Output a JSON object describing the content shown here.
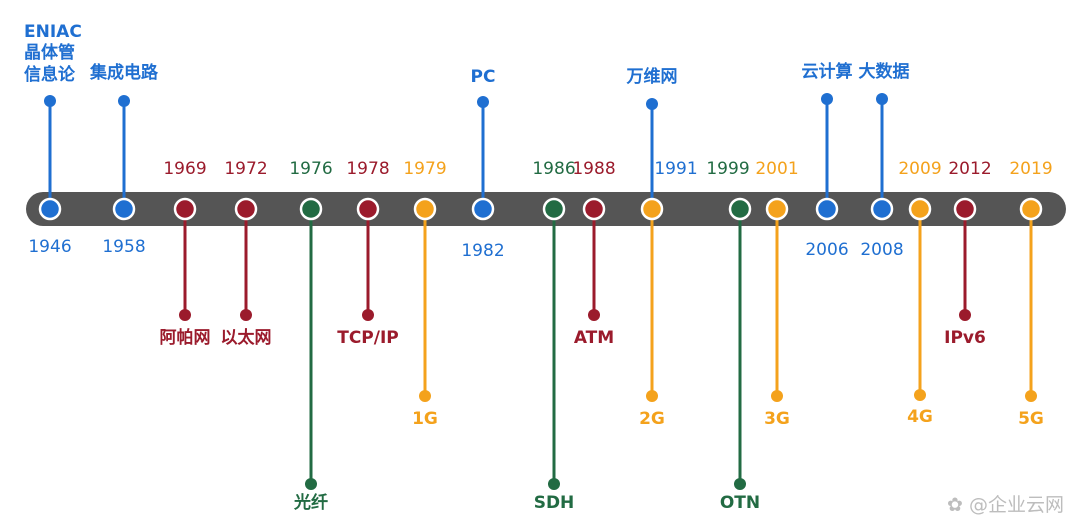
{
  "colors": {
    "blue": "#1f6fd1",
    "red": "#9b1b2c",
    "green": "#226b43",
    "orange": "#f4a21c",
    "bar": "#555555",
    "watermark": "#bdbdbd"
  },
  "events": [
    {
      "id": "1946",
      "year": "1946",
      "label": "ENIAC\n晶体管\n信息论",
      "color": "blue",
      "dir": "up"
    },
    {
      "id": "1958",
      "year": "1958",
      "label": "集成电路",
      "color": "blue",
      "dir": "up"
    },
    {
      "id": "1969",
      "year": "1969",
      "label": "阿帕网",
      "color": "red",
      "dir": "down"
    },
    {
      "id": "1972",
      "year": "1972",
      "label": "以太网",
      "color": "red",
      "dir": "down"
    },
    {
      "id": "1976",
      "year": "1976",
      "label": "光纤",
      "color": "green",
      "dir": "down"
    },
    {
      "id": "1978",
      "year": "1978",
      "label": "TCP/IP",
      "color": "red",
      "dir": "down"
    },
    {
      "id": "1979",
      "year": "1979",
      "label": "1G",
      "color": "orange",
      "dir": "down"
    },
    {
      "id": "1982",
      "year": "1982",
      "label": "PC",
      "color": "blue",
      "dir": "up"
    },
    {
      "id": "1986",
      "year": "1986",
      "label": "SDH",
      "color": "green",
      "dir": "down"
    },
    {
      "id": "1988",
      "year": "1988",
      "label": "ATM",
      "color": "red",
      "dir": "down"
    },
    {
      "id": "1991",
      "year": "1991",
      "label": "万维网",
      "color": "blue",
      "dir": "up",
      "dot_color": "orange"
    },
    {
      "id": "1991b",
      "year": "",
      "label": "2G",
      "color": "orange",
      "dir": "down"
    },
    {
      "id": "1999",
      "year": "1999",
      "label": "OTN",
      "color": "green",
      "dir": "down"
    },
    {
      "id": "2001",
      "year": "2001",
      "label": "3G",
      "color": "orange",
      "dir": "down"
    },
    {
      "id": "2006",
      "year": "2006",
      "label": "云计算",
      "color": "blue",
      "dir": "up"
    },
    {
      "id": "2008",
      "year": "2008",
      "label": "大数据",
      "color": "blue",
      "dir": "up"
    },
    {
      "id": "2009",
      "year": "2009",
      "label": "4G",
      "color": "orange",
      "dir": "down"
    },
    {
      "id": "2012",
      "year": "2012",
      "label": "IPv6",
      "color": "red",
      "dir": "down"
    },
    {
      "id": "2019",
      "year": "2019",
      "label": "5G",
      "color": "orange",
      "dir": "down"
    }
  ],
  "watermark": "企业云网"
}
